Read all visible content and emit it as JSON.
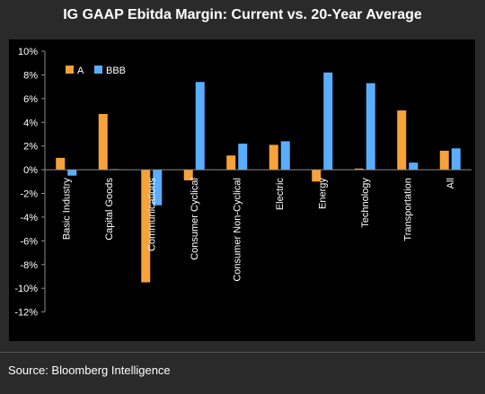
{
  "title": "IG GAAP Ebitda Margin: Current vs. 20-Year Average",
  "source": "Source: Bloomberg Intelligence",
  "chart_data": {
    "type": "bar",
    "categories": [
      "Basic Industry",
      "Capital Goods",
      "Communications",
      "Consumer Cyclical",
      "Consumer Non-Cyclical",
      "Electric",
      "Energy",
      "Technology",
      "Transportation",
      "All"
    ],
    "series": [
      {
        "name": "A",
        "color": "#f7a23a",
        "values": [
          1.0,
          4.7,
          -9.5,
          -0.9,
          1.2,
          2.1,
          -1.0,
          0.1,
          5.0,
          1.6
        ]
      },
      {
        "name": "BBB",
        "color": "#5aaeff",
        "values": [
          -0.5,
          0.05,
          -3.0,
          7.4,
          2.2,
          2.4,
          8.2,
          7.3,
          0.6,
          1.8
        ]
      }
    ],
    "y_ticks": [
      "10%",
      "8%",
      "6%",
      "4%",
      "2%",
      "0%",
      "-2%",
      "-4%",
      "-6%",
      "-8%",
      "-10%",
      "-12%"
    ],
    "ylim": [
      -12,
      10
    ],
    "y_unit": "%",
    "legend_position": "top-left",
    "grid": false
  }
}
